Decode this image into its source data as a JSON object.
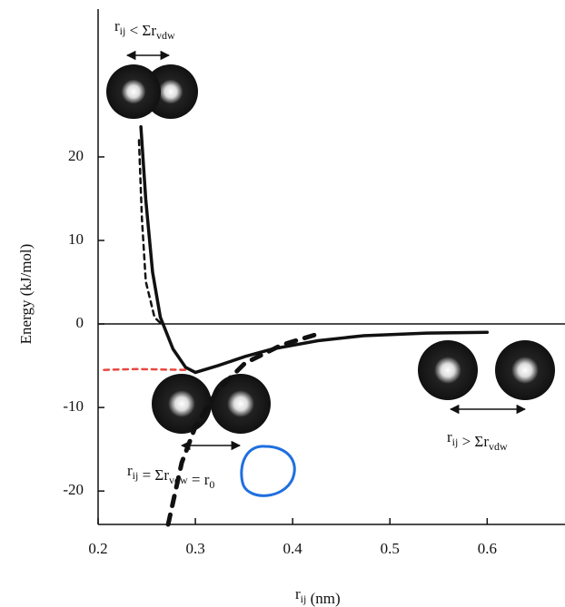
{
  "chart_data": {
    "type": "line",
    "x_label": [
      [
        "r",
        "ij"
      ],
      [
        " (nm)",
        ""
      ]
    ],
    "y_label": "Energy (kJ/mol)",
    "xlim": [
      0.2,
      0.68
    ],
    "ylim": [
      -24,
      37.7
    ],
    "xticks": [
      0.2,
      0.3,
      0.4,
      0.5,
      0.6
    ],
    "yticks": [
      -20,
      -10,
      0,
      10,
      20
    ],
    "zero_line": true,
    "series": [
      {
        "color": "#111111",
        "dash": false,
        "width": 3.5,
        "x": [
          0.244,
          0.249,
          0.256,
          0.264,
          0.277,
          0.29,
          0.3,
          0.323,
          0.351,
          0.379,
          0.426,
          0.473,
          0.538,
          0.6
        ],
        "values": [
          23.6,
          14.9,
          6.2,
          0.8,
          -3.0,
          -5.2,
          -5.8,
          -5.0,
          -3.9,
          -3.0,
          -2.0,
          -1.4,
          -1.1,
          -1.0
        ]
      },
      {
        "color": "#111111",
        "dash": true,
        "width": 2.5,
        "x": [
          0.242,
          0.245,
          0.249,
          0.258,
          0.265
        ],
        "values": [
          22,
          12.7,
          5.1,
          0.8,
          0
        ]
      },
      {
        "color": "#111111",
        "dash": true,
        "width": 5,
        "x": [
          0.272,
          0.286,
          0.3,
          0.323,
          0.351,
          0.389,
          0.426
        ],
        "values": [
          -24,
          -16.6,
          -12.3,
          -7.9,
          -4.7,
          -2.5,
          -1.2
        ]
      },
      {
        "color": "#e8473f",
        "dash": true,
        "width": 2.5,
        "x": [
          0.206,
          0.239,
          0.29
        ],
        "values": [
          -5.5,
          -5.4,
          -5.5
        ]
      }
    ],
    "annotations": [
      [
        [
          "r",
          "ij"
        ],
        [
          " < Σr",
          "vdw"
        ]
      ],
      [
        [
          "r",
          "ij"
        ],
        [
          " = Σr",
          "vdw"
        ],
        [
          " = r",
          "0"
        ]
      ],
      [
        [
          "r",
          "ij"
        ],
        [
          " > Σr",
          "vdw"
        ]
      ]
    ]
  }
}
